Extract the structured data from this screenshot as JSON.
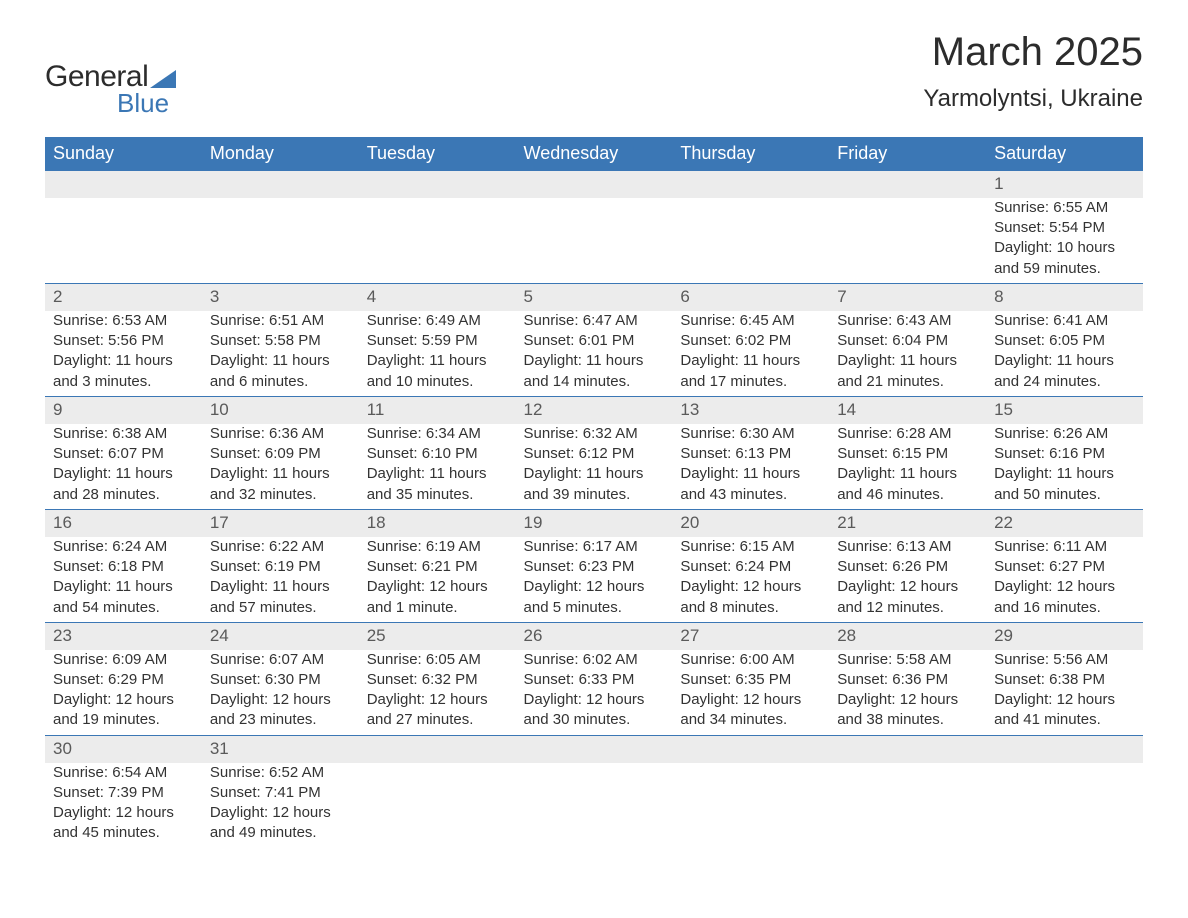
{
  "brand": {
    "word1": "General",
    "word2": "Blue",
    "sail_color": "#3b77b5",
    "text_color_dark": "#2c2c2c"
  },
  "title": "March 2025",
  "location": "Yarmolyntsi, Ukraine",
  "colors": {
    "header_bg": "#3b77b5",
    "header_text": "#ffffff",
    "daynum_bg": "#ececec",
    "daynum_text": "#5a5a5a",
    "body_text": "#333333",
    "rule": "#3b77b5",
    "page_bg": "#ffffff"
  },
  "typography": {
    "title_fontsize": 40,
    "location_fontsize": 24,
    "header_fontsize": 18,
    "daynum_fontsize": 17,
    "cell_fontsize": 15,
    "font_family": "Arial"
  },
  "layout": {
    "columns": 7,
    "first_day_column_index": 6,
    "days_in_month": 31
  },
  "weekdays": [
    "Sunday",
    "Monday",
    "Tuesday",
    "Wednesday",
    "Thursday",
    "Friday",
    "Saturday"
  ],
  "labels": {
    "sunrise_prefix": "Sunrise: ",
    "sunset_prefix": "Sunset: ",
    "daylight_prefix": "Daylight: "
  },
  "days": [
    {
      "n": 1,
      "sunrise": "6:55 AM",
      "sunset": "5:54 PM",
      "daylight": "10 hours and 59 minutes."
    },
    {
      "n": 2,
      "sunrise": "6:53 AM",
      "sunset": "5:56 PM",
      "daylight": "11 hours and 3 minutes."
    },
    {
      "n": 3,
      "sunrise": "6:51 AM",
      "sunset": "5:58 PM",
      "daylight": "11 hours and 6 minutes."
    },
    {
      "n": 4,
      "sunrise": "6:49 AM",
      "sunset": "5:59 PM",
      "daylight": "11 hours and 10 minutes."
    },
    {
      "n": 5,
      "sunrise": "6:47 AM",
      "sunset": "6:01 PM",
      "daylight": "11 hours and 14 minutes."
    },
    {
      "n": 6,
      "sunrise": "6:45 AM",
      "sunset": "6:02 PM",
      "daylight": "11 hours and 17 minutes."
    },
    {
      "n": 7,
      "sunrise": "6:43 AM",
      "sunset": "6:04 PM",
      "daylight": "11 hours and 21 minutes."
    },
    {
      "n": 8,
      "sunrise": "6:41 AM",
      "sunset": "6:05 PM",
      "daylight": "11 hours and 24 minutes."
    },
    {
      "n": 9,
      "sunrise": "6:38 AM",
      "sunset": "6:07 PM",
      "daylight": "11 hours and 28 minutes."
    },
    {
      "n": 10,
      "sunrise": "6:36 AM",
      "sunset": "6:09 PM",
      "daylight": "11 hours and 32 minutes."
    },
    {
      "n": 11,
      "sunrise": "6:34 AM",
      "sunset": "6:10 PM",
      "daylight": "11 hours and 35 minutes."
    },
    {
      "n": 12,
      "sunrise": "6:32 AM",
      "sunset": "6:12 PM",
      "daylight": "11 hours and 39 minutes."
    },
    {
      "n": 13,
      "sunrise": "6:30 AM",
      "sunset": "6:13 PM",
      "daylight": "11 hours and 43 minutes."
    },
    {
      "n": 14,
      "sunrise": "6:28 AM",
      "sunset": "6:15 PM",
      "daylight": "11 hours and 46 minutes."
    },
    {
      "n": 15,
      "sunrise": "6:26 AM",
      "sunset": "6:16 PM",
      "daylight": "11 hours and 50 minutes."
    },
    {
      "n": 16,
      "sunrise": "6:24 AM",
      "sunset": "6:18 PM",
      "daylight": "11 hours and 54 minutes."
    },
    {
      "n": 17,
      "sunrise": "6:22 AM",
      "sunset": "6:19 PM",
      "daylight": "11 hours and 57 minutes."
    },
    {
      "n": 18,
      "sunrise": "6:19 AM",
      "sunset": "6:21 PM",
      "daylight": "12 hours and 1 minute."
    },
    {
      "n": 19,
      "sunrise": "6:17 AM",
      "sunset": "6:23 PM",
      "daylight": "12 hours and 5 minutes."
    },
    {
      "n": 20,
      "sunrise": "6:15 AM",
      "sunset": "6:24 PM",
      "daylight": "12 hours and 8 minutes."
    },
    {
      "n": 21,
      "sunrise": "6:13 AM",
      "sunset": "6:26 PM",
      "daylight": "12 hours and 12 minutes."
    },
    {
      "n": 22,
      "sunrise": "6:11 AM",
      "sunset": "6:27 PM",
      "daylight": "12 hours and 16 minutes."
    },
    {
      "n": 23,
      "sunrise": "6:09 AM",
      "sunset": "6:29 PM",
      "daylight": "12 hours and 19 minutes."
    },
    {
      "n": 24,
      "sunrise": "6:07 AM",
      "sunset": "6:30 PM",
      "daylight": "12 hours and 23 minutes."
    },
    {
      "n": 25,
      "sunrise": "6:05 AM",
      "sunset": "6:32 PM",
      "daylight": "12 hours and 27 minutes."
    },
    {
      "n": 26,
      "sunrise": "6:02 AM",
      "sunset": "6:33 PM",
      "daylight": "12 hours and 30 minutes."
    },
    {
      "n": 27,
      "sunrise": "6:00 AM",
      "sunset": "6:35 PM",
      "daylight": "12 hours and 34 minutes."
    },
    {
      "n": 28,
      "sunrise": "5:58 AM",
      "sunset": "6:36 PM",
      "daylight": "12 hours and 38 minutes."
    },
    {
      "n": 29,
      "sunrise": "5:56 AM",
      "sunset": "6:38 PM",
      "daylight": "12 hours and 41 minutes."
    },
    {
      "n": 30,
      "sunrise": "6:54 AM",
      "sunset": "7:39 PM",
      "daylight": "12 hours and 45 minutes."
    },
    {
      "n": 31,
      "sunrise": "6:52 AM",
      "sunset": "7:41 PM",
      "daylight": "12 hours and 49 minutes."
    }
  ]
}
